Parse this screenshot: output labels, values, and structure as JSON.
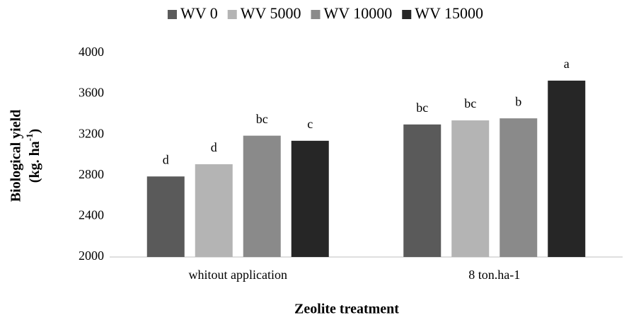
{
  "chart_data": {
    "type": "bar",
    "categories": [
      "whitout application",
      "8 ton.ha-1"
    ],
    "series": [
      {
        "name": "WV 0",
        "color": "#5a5a5a",
        "values": [
          2790,
          3300
        ],
        "labels": [
          "d",
          "bc"
        ]
      },
      {
        "name": "WV 5000",
        "color": "#b4b4b4",
        "values": [
          2910,
          3340
        ],
        "labels": [
          "d",
          "bc"
        ]
      },
      {
        "name": "WV 10000",
        "color": "#8a8a8a",
        "values": [
          3190,
          3360
        ],
        "labels": [
          "bc",
          "b"
        ]
      },
      {
        "name": "WV 15000",
        "color": "#262626",
        "values": [
          3140,
          3730
        ],
        "labels": [
          "c",
          "a"
        ]
      }
    ],
    "ylim": [
      2000,
      4000
    ],
    "yticks": [
      2000,
      2400,
      2800,
      3200,
      3600,
      4000
    ],
    "ylabel": "Biological yield",
    "ylabel_unit": [
      "(kg. ha",
      "-1",
      ")"
    ],
    "xlabel": "Zeolite treatment",
    "legend": "top",
    "grid": false
  }
}
